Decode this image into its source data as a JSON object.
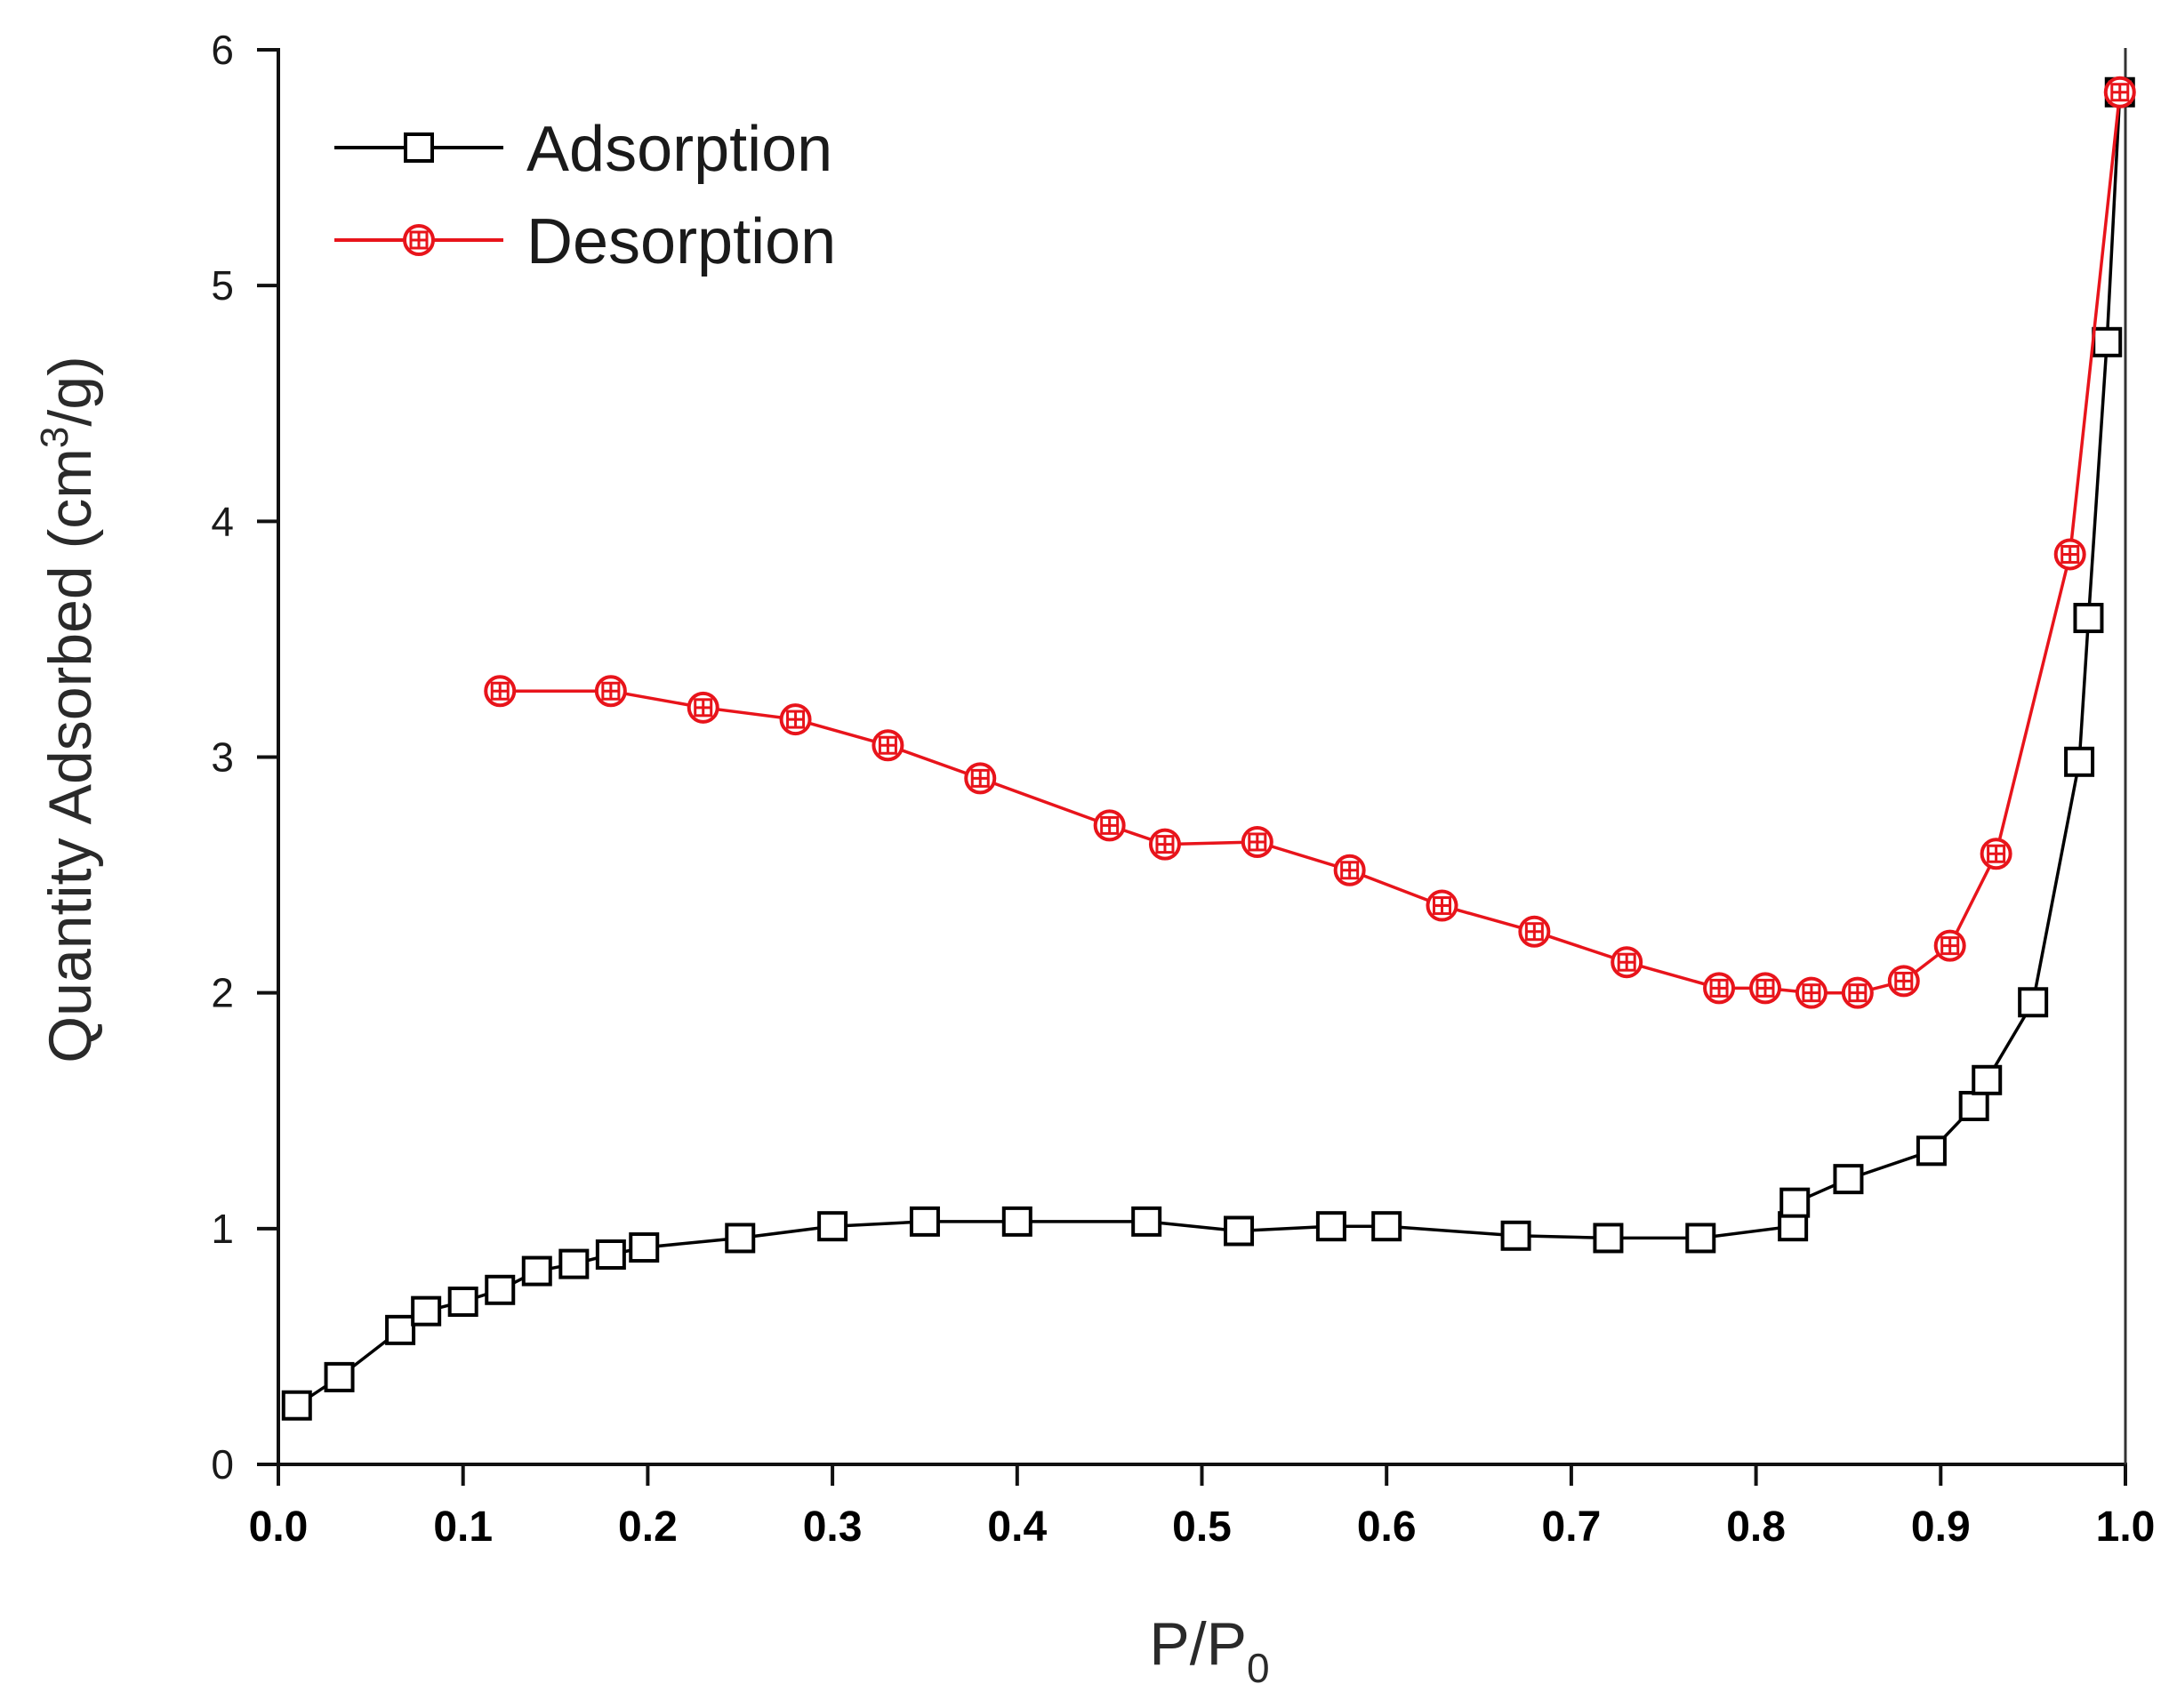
{
  "chart_data": {
    "type": "line",
    "title": "",
    "xlabel": {
      "main": "P/P",
      "subscript": "0"
    },
    "ylabel": {
      "main": "Quantity Adsorbed (cm",
      "superscript": "3",
      "tail": "/g)"
    },
    "xlim": [
      0.0,
      1.0
    ],
    "ylim": [
      0,
      6
    ],
    "xticks": [
      "0.0",
      "0.1",
      "0.2",
      "0.3",
      "0.4",
      "0.5",
      "0.6",
      "0.7",
      "0.8",
      "0.9",
      "1.0"
    ],
    "xtick_values": [
      0.0,
      0.1,
      0.2,
      0.3,
      0.4,
      0.5,
      0.6,
      0.7,
      0.8,
      0.9,
      1.0
    ],
    "yticks": [
      "0",
      "1",
      "2",
      "3",
      "4",
      "5",
      "6"
    ],
    "ytick_values": [
      0,
      1,
      2,
      3,
      4,
      5,
      6
    ],
    "grid": false,
    "legend_position": "top-left",
    "series": [
      {
        "name": "Adsorption",
        "color": "#000000",
        "marker": "open-square",
        "points": [
          [
            0.01,
            0.25
          ],
          [
            0.033,
            0.37
          ],
          [
            0.066,
            0.57
          ],
          [
            0.08,
            0.65
          ],
          [
            0.1,
            0.69
          ],
          [
            0.12,
            0.74
          ],
          [
            0.14,
            0.82
          ],
          [
            0.16,
            0.85
          ],
          [
            0.18,
            0.89
          ],
          [
            0.198,
            0.92
          ],
          [
            0.25,
            0.96
          ],
          [
            0.3,
            1.01
          ],
          [
            0.35,
            1.03
          ],
          [
            0.4,
            1.03
          ],
          [
            0.47,
            1.03
          ],
          [
            0.52,
            0.99
          ],
          [
            0.57,
            1.01
          ],
          [
            0.6,
            1.01
          ],
          [
            0.67,
            0.97
          ],
          [
            0.72,
            0.96
          ],
          [
            0.77,
            0.96
          ],
          [
            0.82,
            1.01
          ],
          [
            0.821,
            1.11
          ],
          [
            0.85,
            1.21
          ],
          [
            0.895,
            1.33
          ],
          [
            0.918,
            1.52
          ],
          [
            0.925,
            1.63
          ],
          [
            0.95,
            1.96
          ],
          [
            0.975,
            2.98
          ],
          [
            0.98,
            3.59
          ],
          [
            0.99,
            4.76
          ],
          [
            0.997,
            5.82
          ]
        ]
      },
      {
        "name": "Desorption",
        "color": "#e8141b",
        "marker": "open-circle-cross",
        "points": [
          [
            0.997,
            5.82
          ],
          [
            0.97,
            3.86
          ],
          [
            0.93,
            2.59
          ],
          [
            0.905,
            2.2
          ],
          [
            0.88,
            2.05
          ],
          [
            0.855,
            2.0
          ],
          [
            0.83,
            2.0
          ],
          [
            0.805,
            2.02
          ],
          [
            0.78,
            2.02
          ],
          [
            0.73,
            2.13
          ],
          [
            0.68,
            2.26
          ],
          [
            0.63,
            2.37
          ],
          [
            0.58,
            2.52
          ],
          [
            0.53,
            2.64
          ],
          [
            0.48,
            2.63
          ],
          [
            0.45,
            2.71
          ],
          [
            0.38,
            2.91
          ],
          [
            0.33,
            3.05
          ],
          [
            0.28,
            3.16
          ],
          [
            0.23,
            3.21
          ],
          [
            0.18,
            3.28
          ],
          [
            0.12,
            3.28
          ]
        ]
      }
    ]
  }
}
